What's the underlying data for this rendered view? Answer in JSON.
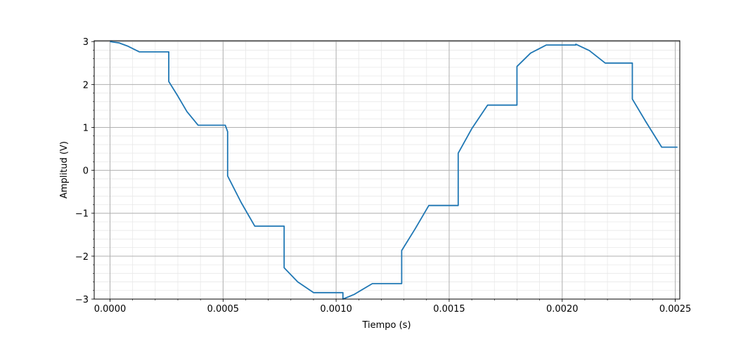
{
  "chart_data": {
    "type": "line",
    "title": "",
    "xlabel": "Tiempo (s)",
    "ylabel": "Amplitud (V)",
    "xlim": [
      -7e-05,
      0.00252
    ],
    "ylim": [
      -3,
      3.02
    ],
    "grid": {
      "major": true,
      "minor": true
    },
    "colors": {
      "line": "#1f77b4",
      "grid_major": "#b0b0b0",
      "grid_minor": "#e8e8e8"
    },
    "x_ticks": [
      0,
      0.0005,
      0.001,
      0.0015,
      0.002,
      0.0025
    ],
    "x_tick_labels": [
      "0.0000",
      "0.0005",
      "0.0010",
      "0.0015",
      "0.0020",
      "0.0025"
    ],
    "y_ticks": [
      -3,
      -2,
      -1,
      0,
      1,
      2,
      3
    ],
    "y_tick_labels": [
      "−3",
      "−2",
      "−1",
      "0",
      "1",
      "2",
      "3"
    ],
    "series": [
      {
        "x": [
          0,
          4e-05,
          8e-05,
          0.00013,
          0.00026,
          0.00026,
          0.0003,
          0.00034,
          0.00039,
          0.00051,
          0.00051,
          0.00052,
          0.00052,
          0.00058,
          0.00064,
          0.00077,
          0.00077,
          0.00083,
          0.0009,
          0.00103,
          0.00103,
          0.00108,
          0.00116,
          0.00129,
          0.00129,
          0.00135,
          0.00141,
          0.00154,
          0.00154,
          0.0016,
          0.00167,
          0.0018,
          0.0018,
          0.00186,
          0.00193,
          0.00206,
          0.00206,
          0.00212,
          0.00219,
          0.00231,
          0.00231,
          0.00237,
          0.00244,
          0.00251
        ],
        "y": [
          3.0,
          2.97,
          2.89,
          2.76,
          2.76,
          2.07,
          1.73,
          1.37,
          1.05,
          1.05,
          1.05,
          0.9,
          -0.13,
          -0.75,
          -1.3,
          -1.3,
          -2.27,
          -2.6,
          -2.85,
          -2.85,
          -3.0,
          -2.89,
          -2.64,
          -2.64,
          -1.87,
          -1.36,
          -0.82,
          -0.82,
          0.4,
          0.97,
          1.52,
          1.52,
          2.42,
          2.73,
          2.92,
          2.92,
          2.94,
          2.79,
          2.5,
          2.5,
          1.66,
          1.13,
          0.54,
          0.54
        ]
      }
    ]
  }
}
